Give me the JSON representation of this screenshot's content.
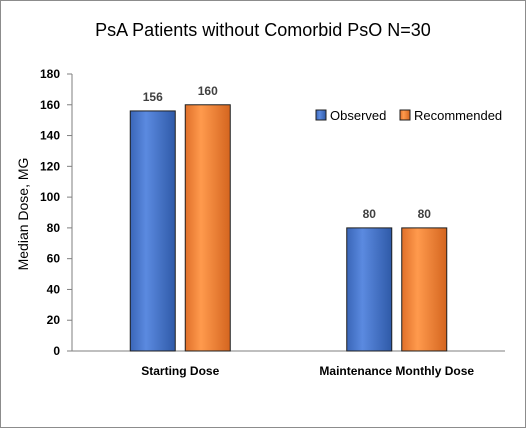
{
  "chart_data": {
    "type": "bar",
    "title": "PsA Patients without Comorbid PsO  N=30",
    "xlabel": "",
    "ylabel": "Median Dose, MG",
    "categories": [
      "Starting Dose",
      "Maintenance Monthly Dose"
    ],
    "series": [
      {
        "name": "Observed",
        "values": [
          156,
          80
        ],
        "color": "#4472C4"
      },
      {
        "name": "Recommended",
        "values": [
          160,
          80
        ],
        "color": "#ED7D31"
      }
    ],
    "ylim": [
      0,
      180
    ],
    "yticks": [
      0,
      20,
      40,
      60,
      80,
      100,
      120,
      140,
      160,
      180
    ],
    "grid": false,
    "legend": "top-right"
  }
}
